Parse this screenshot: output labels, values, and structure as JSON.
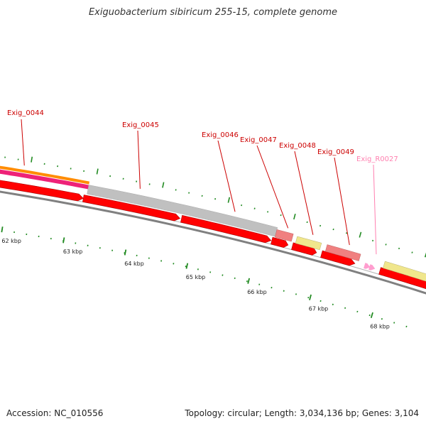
{
  "title": "Exiguobacterium sibiricum 255-15, complete genome",
  "footer": {
    "accession": "Accession: NC_010556",
    "summary": "Topology: circular; Length: 3,034,136 bp; Genes: 3,104"
  },
  "colors": {
    "cds": "#ff0000",
    "cds_pale": "#f08080",
    "rrna_arrow": "#ff9ecf",
    "orange_track": "#ff8c00",
    "pink_track": "#ee2277",
    "grey_track": "#c0c0c0",
    "yellow_feature": "#f0e68c",
    "tick_green": "#228b22",
    "backbone": "#808080",
    "gene_label": "#cc0000",
    "rrna_label": "#ff80b0"
  },
  "scale_ticks": [
    {
      "label": "62 kbp"
    },
    {
      "label": "63 kbp"
    },
    {
      "label": "64 kbp"
    },
    {
      "label": "65 kbp"
    },
    {
      "label": "66 kbp"
    },
    {
      "label": "67 kbp"
    },
    {
      "label": "68 kbp"
    }
  ],
  "genes": [
    {
      "label": "Exig_0044",
      "type": "cds"
    },
    {
      "label": "Exig_0045",
      "type": "cds"
    },
    {
      "label": "Exig_0046",
      "type": "cds"
    },
    {
      "label": "Exig_0047",
      "type": "cds"
    },
    {
      "label": "Exig_0048",
      "type": "cds"
    },
    {
      "label": "Exig_0049",
      "type": "cds"
    },
    {
      "label": "Exig_R0027",
      "type": "rna"
    }
  ]
}
